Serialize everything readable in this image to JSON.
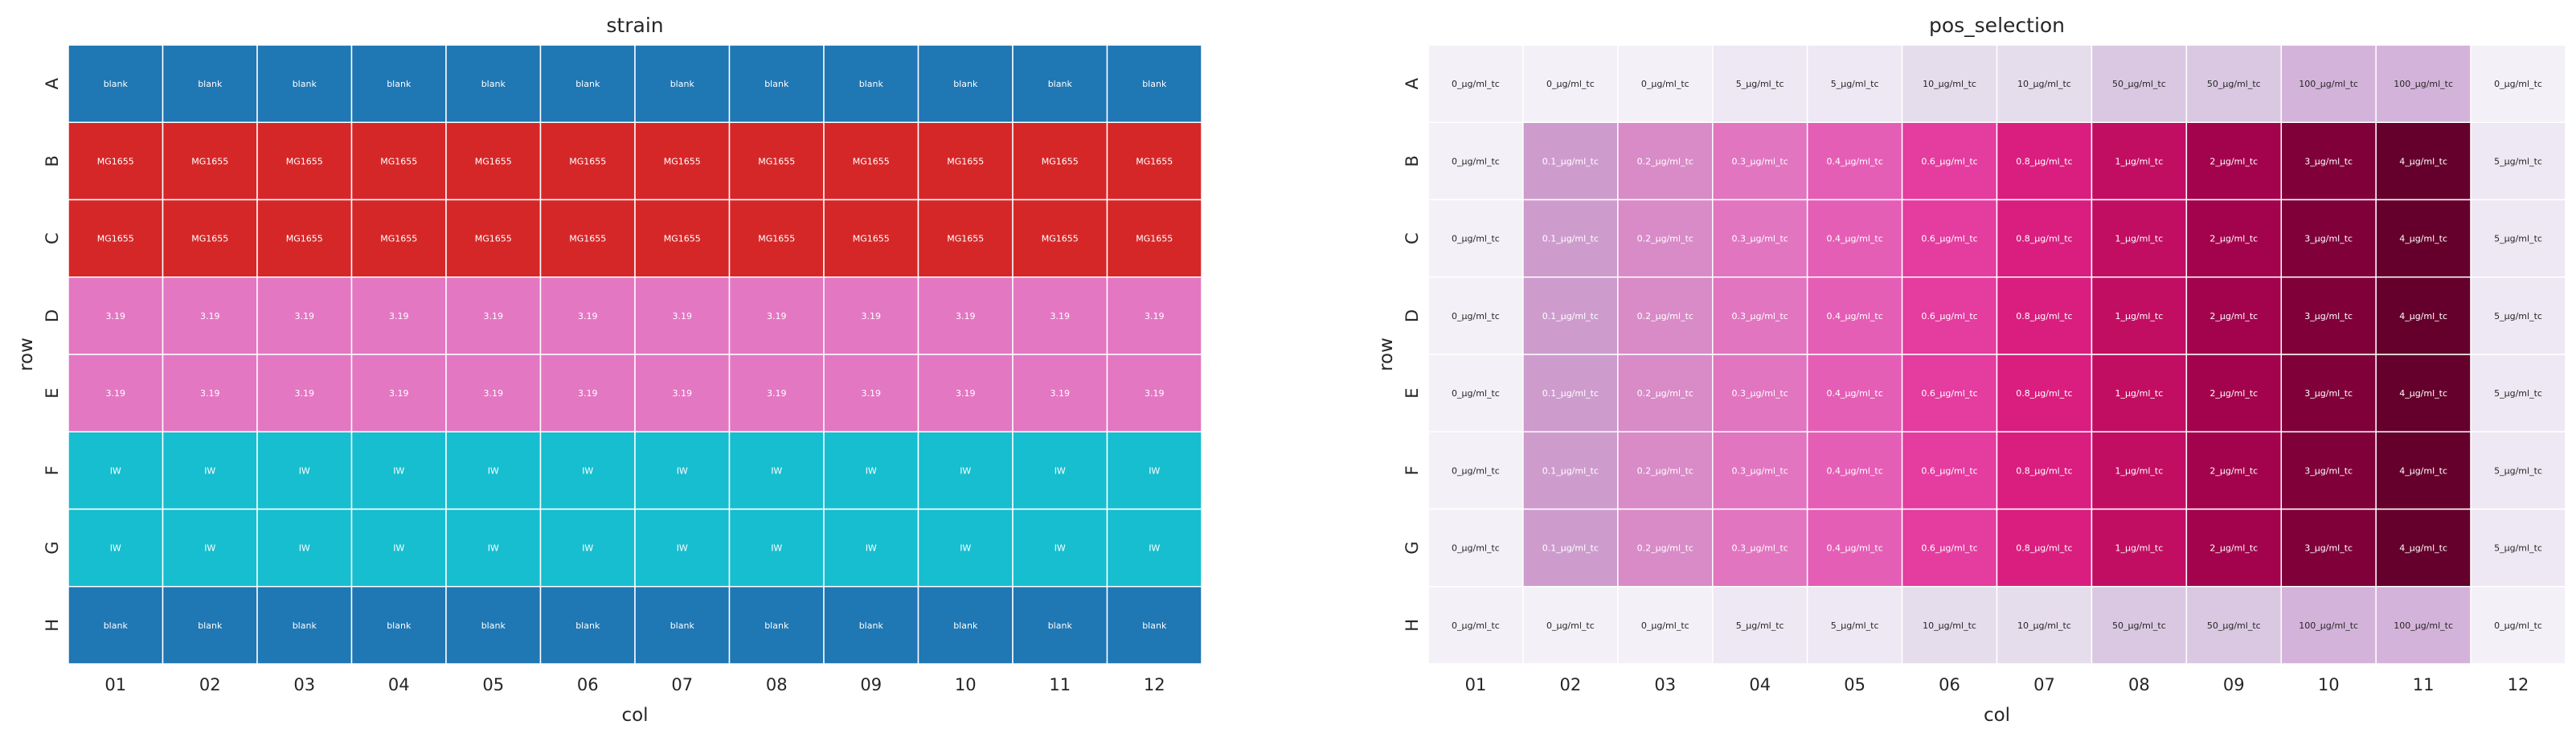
{
  "chart_data": [
    {
      "type": "heatmap",
      "title": "strain",
      "xlabel": "col",
      "ylabel": "row",
      "x_categories": [
        "01",
        "02",
        "03",
        "04",
        "05",
        "06",
        "07",
        "08",
        "09",
        "10",
        "11",
        "12"
      ],
      "y_categories": [
        "A",
        "B",
        "C",
        "D",
        "E",
        "F",
        "G",
        "H"
      ],
      "category_colors": {
        "blank": "#1f77b4",
        "MG1655": "#d62728",
        "3.19": "#e377c2",
        "IW": "#17becf"
      },
      "cells": [
        [
          "blank",
          "blank",
          "blank",
          "blank",
          "blank",
          "blank",
          "blank",
          "blank",
          "blank",
          "blank",
          "blank",
          "blank"
        ],
        [
          "MG1655",
          "MG1655",
          "MG1655",
          "MG1655",
          "MG1655",
          "MG1655",
          "MG1655",
          "MG1655",
          "MG1655",
          "MG1655",
          "MG1655",
          "MG1655"
        ],
        [
          "MG1655",
          "MG1655",
          "MG1655",
          "MG1655",
          "MG1655",
          "MG1655",
          "MG1655",
          "MG1655",
          "MG1655",
          "MG1655",
          "MG1655",
          "MG1655"
        ],
        [
          "3.19",
          "3.19",
          "3.19",
          "3.19",
          "3.19",
          "3.19",
          "3.19",
          "3.19",
          "3.19",
          "3.19",
          "3.19",
          "3.19"
        ],
        [
          "3.19",
          "3.19",
          "3.19",
          "3.19",
          "3.19",
          "3.19",
          "3.19",
          "3.19",
          "3.19",
          "3.19",
          "3.19",
          "3.19"
        ],
        [
          "IW",
          "IW",
          "IW",
          "IW",
          "IW",
          "IW",
          "IW",
          "IW",
          "IW",
          "IW",
          "IW",
          "IW"
        ],
        [
          "IW",
          "IW",
          "IW",
          "IW",
          "IW",
          "IW",
          "IW",
          "IW",
          "IW",
          "IW",
          "IW",
          "IW"
        ],
        [
          "blank",
          "blank",
          "blank",
          "blank",
          "blank",
          "blank",
          "blank",
          "blank",
          "blank",
          "blank",
          "blank",
          "blank"
        ]
      ],
      "grid": true
    },
    {
      "type": "heatmap",
      "title": "pos_selection",
      "xlabel": "col",
      "ylabel": "row",
      "x_categories": [
        "01",
        "02",
        "03",
        "04",
        "05",
        "06",
        "07",
        "08",
        "09",
        "10",
        "11",
        "12"
      ],
      "y_categories": [
        "A",
        "B",
        "C",
        "D",
        "E",
        "F",
        "G",
        "H"
      ],
      "category_colors": {
        "0_µg/ml_tc": "#f3f1f7",
        "5_µg/ml_tc": "#ede8f3",
        "10_µg/ml_tc": "#e5dcec",
        "50_µg/ml_tc": "#dac8e2",
        "100_µg/ml_tc": "#d4b3da",
        "0.1_µg/ml_tc": "#cd9ccd",
        "0.2_µg/ml_tc": "#d88bc7",
        "0.3_µg/ml_tc": "#e175c0",
        "0.4_µg/ml_tc": "#e55eb6",
        "0.6_µg/ml_tc": "#e43c9f",
        "0.8_µg/ml_tc": "#d91e7f",
        "1_µg/ml_tc": "#c20e62",
        "2_µg/ml_tc": "#a2034c",
        "3_µg/ml_tc": "#80003a",
        "4_µg/ml_tc": "#64002b"
      },
      "cells": [
        [
          "0_µg/ml_tc",
          "0_µg/ml_tc",
          "0_µg/ml_tc",
          "5_µg/ml_tc",
          "5_µg/ml_tc",
          "10_µg/ml_tc",
          "10_µg/ml_tc",
          "50_µg/ml_tc",
          "50_µg/ml_tc",
          "100_µg/ml_tc",
          "100_µg/ml_tc",
          "0_µg/ml_tc"
        ],
        [
          "0_µg/ml_tc",
          "0.1_µg/ml_tc",
          "0.2_µg/ml_tc",
          "0.3_µg/ml_tc",
          "0.4_µg/ml_tc",
          "0.6_µg/ml_tc",
          "0.8_µg/ml_tc",
          "1_µg/ml_tc",
          "2_µg/ml_tc",
          "3_µg/ml_tc",
          "4_µg/ml_tc",
          "5_µg/ml_tc"
        ],
        [
          "0_µg/ml_tc",
          "0.1_µg/ml_tc",
          "0.2_µg/ml_tc",
          "0.3_µg/ml_tc",
          "0.4_µg/ml_tc",
          "0.6_µg/ml_tc",
          "0.8_µg/ml_tc",
          "1_µg/ml_tc",
          "2_µg/ml_tc",
          "3_µg/ml_tc",
          "4_µg/ml_tc",
          "5_µg/ml_tc"
        ],
        [
          "0_µg/ml_tc",
          "0.1_µg/ml_tc",
          "0.2_µg/ml_tc",
          "0.3_µg/ml_tc",
          "0.4_µg/ml_tc",
          "0.6_µg/ml_tc",
          "0.8_µg/ml_tc",
          "1_µg/ml_tc",
          "2_µg/ml_tc",
          "3_µg/ml_tc",
          "4_µg/ml_tc",
          "5_µg/ml_tc"
        ],
        [
          "0_µg/ml_tc",
          "0.1_µg/ml_tc",
          "0.2_µg/ml_tc",
          "0.3_µg/ml_tc",
          "0.4_µg/ml_tc",
          "0.6_µg/ml_tc",
          "0.8_µg/ml_tc",
          "1_µg/ml_tc",
          "2_µg/ml_tc",
          "3_µg/ml_tc",
          "4_µg/ml_tc",
          "5_µg/ml_tc"
        ],
        [
          "0_µg/ml_tc",
          "0.1_µg/ml_tc",
          "0.2_µg/ml_tc",
          "0.3_µg/ml_tc",
          "0.4_µg/ml_tc",
          "0.6_µg/ml_tc",
          "0.8_µg/ml_tc",
          "1_µg/ml_tc",
          "2_µg/ml_tc",
          "3_µg/ml_tc",
          "4_µg/ml_tc",
          "5_µg/ml_tc"
        ],
        [
          "0_µg/ml_tc",
          "0.1_µg/ml_tc",
          "0.2_µg/ml_tc",
          "0.3_µg/ml_tc",
          "0.4_µg/ml_tc",
          "0.6_µg/ml_tc",
          "0.8_µg/ml_tc",
          "1_µg/ml_tc",
          "2_µg/ml_tc",
          "3_µg/ml_tc",
          "4_µg/ml_tc",
          "5_µg/ml_tc"
        ],
        [
          "0_µg/ml_tc",
          "0_µg/ml_tc",
          "0_µg/ml_tc",
          "5_µg/ml_tc",
          "5_µg/ml_tc",
          "10_µg/ml_tc",
          "10_µg/ml_tc",
          "50_µg/ml_tc",
          "50_µg/ml_tc",
          "100_µg/ml_tc",
          "100_µg/ml_tc",
          "0_µg/ml_tc"
        ]
      ],
      "grid": true
    }
  ]
}
